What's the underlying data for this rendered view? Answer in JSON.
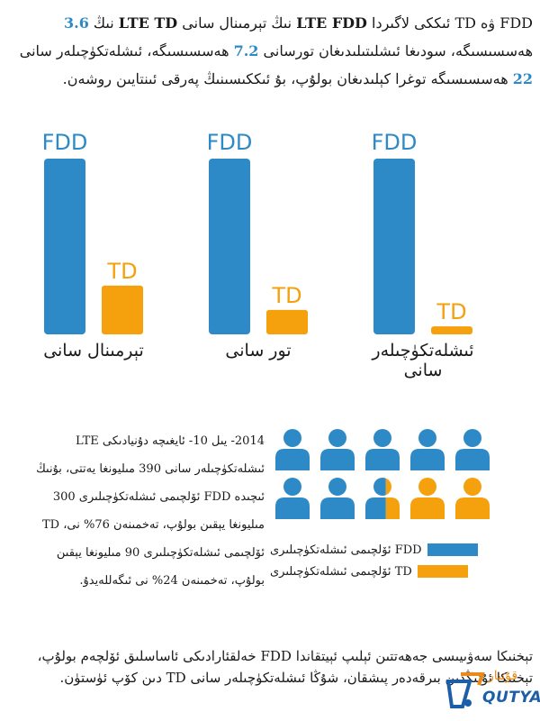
{
  "intro": {
    "p1": "FDD ۋە TD ئىككى لاگىردا ",
    "p2": "LTE FDD",
    "p3": " نىڭ تېرمىنال سانى ",
    "p4": "LTE TD",
    "p5": " نىڭ ",
    "v1": "3.6",
    "p6": " ھەسسىسىگە، سودىغا ئىشلىتىلىدىغان تورسانى ",
    "v2": "7.2",
    "p7": " ھەسسىسىگە، ئىشلەتكۈچىلەر سانى ",
    "v3": "22",
    "p8": " ھەسسىسىگە توغرا كېلىدىغان بولۇپ، بۇ ئىككىسىنىڭ پەرقى ئىنتايىن روشەن."
  },
  "chart_data": {
    "type": "bar",
    "categories": [
      "تېرمىنال سانى",
      "تور سانى",
      "ئىشلەتكۈچىلەر سانى"
    ],
    "series": [
      {
        "name": "FDD",
        "values": [
          3.6,
          7.2,
          22
        ]
      },
      {
        "name": "TD",
        "values": [
          1,
          1,
          1
        ]
      }
    ],
    "colors": {
      "FDD": "#2e8ac7",
      "TD": "#f5a00d"
    }
  },
  "stats": {
    "text": "2014- يىل 10- ئايغىچە دۇنيادىكى LTE ئىشلەتكۈچىلەر سانى 390 مىليونغا يەتتى، بۇنىڭ ئىچىدە FDD ئۆلچىمى ئىشلەتكۈچىلىرى 300 مىليونغا يېقىن بولۇپ، تەخمىنەن 76% نى، TD ئۆلچىمى ئىشلەتكۈچىلىرى 90 مىليونغا يېقىن بولۇپ، تەخمىنەن 24% نى ئىگەللەيدۇ."
  },
  "people_chart": {
    "total_icons": 10,
    "fdd_icons": 7.6,
    "td_icons": 2.4,
    "fdd_share_percent": 76,
    "td_share_percent": 24
  },
  "legend": {
    "fdd_label": "FDD ئۆلچىمى ئىشلەتكۈچىلىرى",
    "td_label": "TD ئۆلچىمى ئىشلەتكۈچىلىرى"
  },
  "footer": {
    "text": "تېخنىكا سەۋىيىسى جەھەتتىن ئېلىپ ئېيتقاندا FDD خەلقئارادىكى ئاساسلىق ئۆلچەم بولۇپ، تېخنىكا ئۇنىڭدىن بىرقەدەر پىشقان، شۇڭا ئىشلەتكۈچىلەر سانى TD دىن كۆپ ئۈستۈن."
  },
  "logo": {
    "text": "QUTYAR",
    "script": "قۇتيار",
    "colors": {
      "primary": "#1c5fa8",
      "accent": "#e98a1a"
    }
  }
}
